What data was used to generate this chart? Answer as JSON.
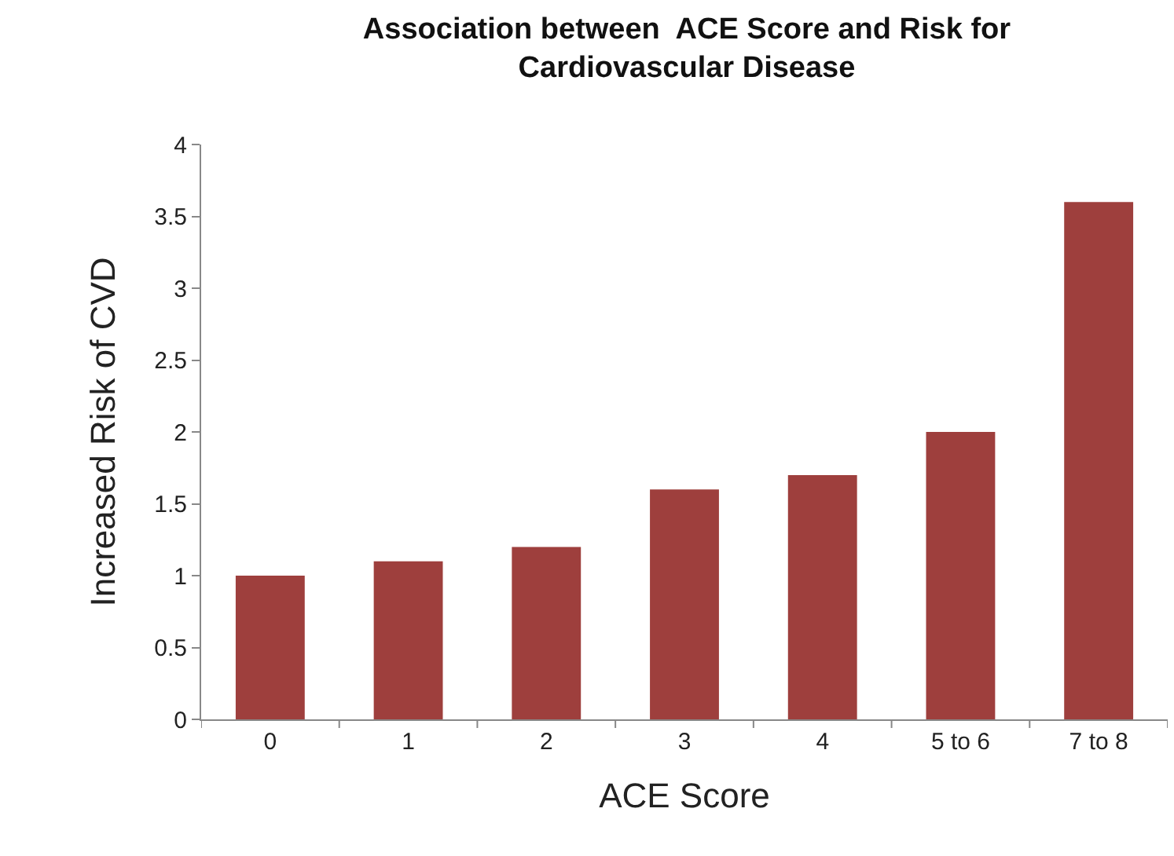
{
  "chart_data": {
    "type": "bar",
    "title": "Association between  ACE Score and Risk for\nCardiovascular Disease",
    "xlabel": "ACE Score",
    "ylabel": "Increased Risk of CVD",
    "categories": [
      "0",
      "1",
      "2",
      "3",
      "4",
      "5 to 6",
      "7 to 8"
    ],
    "values": [
      1,
      1.1,
      1.2,
      1.6,
      1.7,
      2,
      3.6
    ],
    "color": "#9e3f3d",
    "ylim": [
      0,
      4
    ],
    "yticks": [
      0,
      0.5,
      1,
      1.5,
      2,
      2.5,
      3,
      3.5,
      4
    ],
    "grid": false
  }
}
